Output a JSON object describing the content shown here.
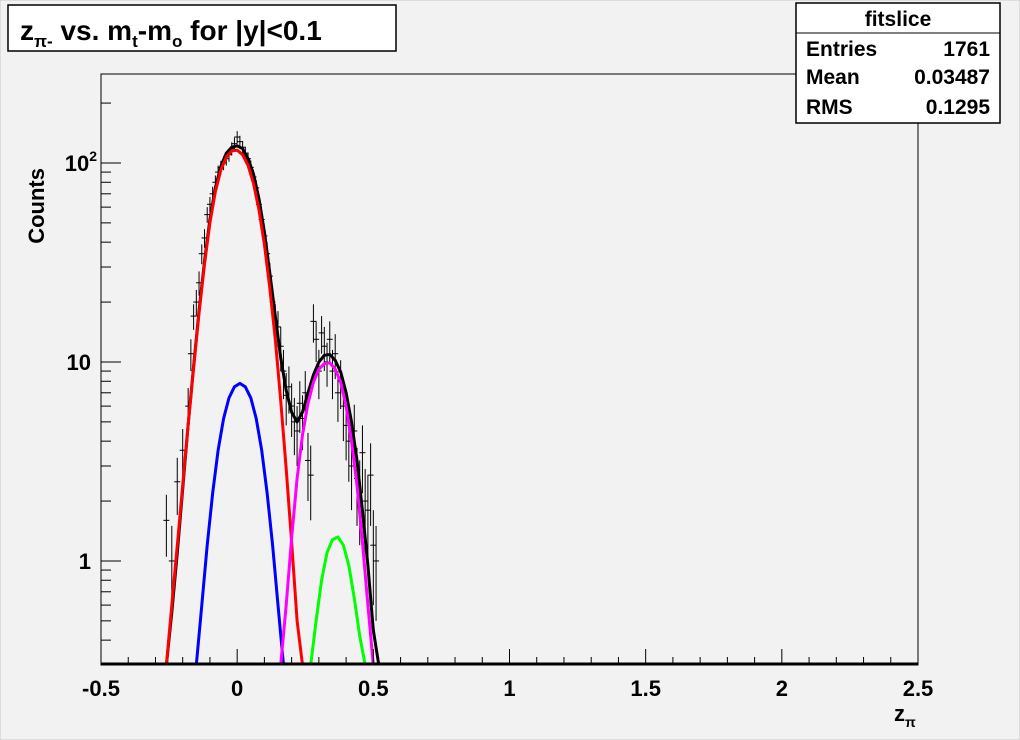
{
  "chart_data": {
    "type": "line",
    "title": {
      "main": "z",
      "main_sub": "π-",
      "mid": " vs. m",
      "mid_sub": "t",
      "dash": "-m",
      "dash_sub": "o",
      "tail": " for |y|<0.1"
    },
    "xlabel": {
      "main": "z",
      "sub": "π"
    },
    "ylabel": "Counts",
    "xlim": [
      -0.5,
      2.5
    ],
    "ylim": [
      0.3,
      280
    ],
    "yscale": "log",
    "x_ticks": [
      {
        "value": -0.5,
        "label": "-0.5"
      },
      {
        "value": 0,
        "label": "0"
      },
      {
        "value": 0.5,
        "label": "0.5"
      },
      {
        "value": 1,
        "label": "1"
      },
      {
        "value": 1.5,
        "label": "1.5"
      },
      {
        "value": 2,
        "label": "2"
      },
      {
        "value": 2.5,
        "label": "2.5"
      }
    ],
    "y_ticks": [
      {
        "value": 1,
        "label": "1"
      },
      {
        "value": 10,
        "label": "10"
      },
      {
        "value": 100,
        "label": "10",
        "sup": "2"
      }
    ],
    "stats_box": {
      "title": "fitslice",
      "rows": [
        {
          "label": "Entries",
          "value": "1761"
        },
        {
          "label": "Mean",
          "value": "0.03487"
        },
        {
          "label": "RMS",
          "value": "0.1295"
        }
      ]
    },
    "series": [
      {
        "color": "#000000",
        "kind": "errorbars",
        "points": [
          [
            -0.26,
            1.6,
            0.55
          ],
          [
            -0.24,
            1.0,
            0.5
          ],
          [
            -0.22,
            2.5,
            0.8
          ],
          [
            -0.2,
            3.6,
            1.0
          ],
          [
            -0.18,
            6.0,
            1.4
          ],
          [
            -0.17,
            11.0,
            2.0
          ],
          [
            -0.16,
            17.0,
            2.5
          ],
          [
            -0.15,
            20.0,
            3.0
          ],
          [
            -0.14,
            25.0,
            3.5
          ],
          [
            -0.13,
            35.0,
            4.0
          ],
          [
            -0.12,
            42.0,
            4.5
          ],
          [
            -0.11,
            55.0,
            5.0
          ],
          [
            -0.1,
            62.0,
            5.5
          ],
          [
            -0.09,
            70.0,
            6.0
          ],
          [
            -0.08,
            80.0,
            6.5
          ],
          [
            -0.07,
            90.0,
            7.0
          ],
          [
            -0.06,
            95.0,
            7.5
          ],
          [
            -0.05,
            100.0,
            8.0
          ],
          [
            -0.04,
            105.0,
            8.0
          ],
          [
            -0.03,
            110.0,
            8.5
          ],
          [
            -0.02,
            118.0,
            9.0
          ],
          [
            -0.01,
            125.0,
            9.0
          ],
          [
            0.0,
            135.0,
            9.5
          ],
          [
            0.01,
            128.0,
            9.0
          ],
          [
            0.02,
            120.0,
            9.0
          ],
          [
            0.03,
            112.0,
            8.5
          ],
          [
            0.04,
            105.0,
            8.0
          ],
          [
            0.05,
            95.0,
            8.0
          ],
          [
            0.06,
            85.0,
            7.5
          ],
          [
            0.07,
            75.0,
            7.0
          ],
          [
            0.08,
            62.0,
            6.5
          ],
          [
            0.09,
            52.0,
            6.0
          ],
          [
            0.1,
            43.0,
            5.5
          ],
          [
            0.11,
            35.0,
            5.0
          ],
          [
            0.12,
            27.0,
            4.5
          ],
          [
            0.13,
            20.0,
            4.0
          ],
          [
            0.14,
            16.0,
            3.5
          ],
          [
            0.15,
            15.0,
            3.0
          ],
          [
            0.16,
            12.0,
            3.0
          ],
          [
            0.17,
            9.0,
            2.5
          ],
          [
            0.18,
            6.8,
            2.0
          ],
          [
            0.19,
            7.5,
            2.0
          ],
          [
            0.2,
            6.0,
            1.8
          ],
          [
            0.21,
            5.0,
            1.6
          ],
          [
            0.22,
            4.5,
            1.5
          ],
          [
            0.23,
            6.2,
            1.8
          ],
          [
            0.24,
            5.2,
            1.6
          ],
          [
            0.25,
            7.0,
            2.0
          ],
          [
            0.26,
            3.2,
            1.2
          ],
          [
            0.27,
            2.7,
            1.1
          ],
          [
            0.28,
            16.0,
            3.5
          ],
          [
            0.29,
            13.0,
            3.0
          ],
          [
            0.3,
            9.0,
            2.5
          ],
          [
            0.31,
            14.0,
            3.0
          ],
          [
            0.32,
            12.0,
            3.0
          ],
          [
            0.33,
            10.0,
            2.5
          ],
          [
            0.34,
            13.0,
            3.0
          ],
          [
            0.35,
            9.0,
            2.5
          ],
          [
            0.36,
            11.0,
            2.8
          ],
          [
            0.37,
            7.0,
            2.0
          ],
          [
            0.38,
            8.0,
            2.2
          ],
          [
            0.39,
            6.0,
            2.0
          ],
          [
            0.4,
            4.8,
            1.6
          ],
          [
            0.41,
            4.0,
            1.5
          ],
          [
            0.42,
            3.0,
            1.2
          ],
          [
            0.43,
            4.5,
            1.6
          ],
          [
            0.44,
            2.6,
            1.1
          ],
          [
            0.45,
            2.2,
            1.0
          ],
          [
            0.46,
            3.5,
            1.3
          ],
          [
            0.47,
            2.0,
            0.9
          ],
          [
            0.48,
            1.8,
            0.9
          ],
          [
            0.49,
            2.7,
            1.2
          ],
          [
            0.5,
            1.2,
            0.6
          ],
          [
            0.51,
            1.0,
            0.5
          ]
        ]
      },
      {
        "color": "#000000",
        "kind": "curve",
        "points": [
          [
            -0.26,
            0.3
          ],
          [
            -0.24,
            0.55
          ],
          [
            -0.22,
            1.1
          ],
          [
            -0.2,
            2.3
          ],
          [
            -0.18,
            4.8
          ],
          [
            -0.16,
            9.5
          ],
          [
            -0.14,
            18.0
          ],
          [
            -0.12,
            32.0
          ],
          [
            -0.1,
            52.0
          ],
          [
            -0.08,
            75.0
          ],
          [
            -0.06,
            96.0
          ],
          [
            -0.04,
            112.0
          ],
          [
            -0.02,
            120.0
          ],
          [
            0.0,
            122.0
          ],
          [
            0.02,
            118.0
          ],
          [
            0.04,
            105.0
          ],
          [
            0.06,
            88.0
          ],
          [
            0.08,
            66.0
          ],
          [
            0.1,
            45.0
          ],
          [
            0.12,
            28.0
          ],
          [
            0.14,
            17.0
          ],
          [
            0.16,
            10.5
          ],
          [
            0.18,
            7.2
          ],
          [
            0.2,
            5.6
          ],
          [
            0.22,
            5.0
          ],
          [
            0.24,
            5.6
          ],
          [
            0.26,
            7.0
          ],
          [
            0.28,
            8.6
          ],
          [
            0.3,
            10.0
          ],
          [
            0.32,
            10.8
          ],
          [
            0.34,
            10.9
          ],
          [
            0.36,
            10.2
          ],
          [
            0.38,
            8.9
          ],
          [
            0.4,
            7.0
          ],
          [
            0.42,
            5.0
          ],
          [
            0.44,
            3.2
          ],
          [
            0.46,
            1.8
          ],
          [
            0.48,
            0.95
          ],
          [
            0.5,
            0.45
          ],
          [
            0.52,
            0.3
          ]
        ]
      },
      {
        "color": "#ff0000",
        "kind": "curve",
        "points": [
          [
            -0.26,
            0.3
          ],
          [
            -0.24,
            0.6
          ],
          [
            -0.22,
            1.2
          ],
          [
            -0.2,
            2.4
          ],
          [
            -0.18,
            4.8
          ],
          [
            -0.16,
            9.3
          ],
          [
            -0.14,
            17.5
          ],
          [
            -0.12,
            31.0
          ],
          [
            -0.1,
            50.0
          ],
          [
            -0.08,
            72.0
          ],
          [
            -0.06,
            92.0
          ],
          [
            -0.04,
            107.0
          ],
          [
            -0.02,
            115.0
          ],
          [
            0.0,
            116.0
          ],
          [
            0.02,
            110.0
          ],
          [
            0.04,
            97.0
          ],
          [
            0.06,
            79.0
          ],
          [
            0.08,
            58.0
          ],
          [
            0.1,
            39.0
          ],
          [
            0.12,
            23.5
          ],
          [
            0.14,
            13.0
          ],
          [
            0.16,
            6.4
          ],
          [
            0.18,
            2.9
          ],
          [
            0.2,
            1.25
          ],
          [
            0.22,
            0.5
          ],
          [
            0.24,
            0.3
          ]
        ]
      },
      {
        "color": "#0000ff",
        "kind": "curve",
        "points": [
          [
            -0.15,
            0.3
          ],
          [
            -0.13,
            0.6
          ],
          [
            -0.11,
            1.2
          ],
          [
            -0.09,
            2.2
          ],
          [
            -0.07,
            3.6
          ],
          [
            -0.05,
            5.2
          ],
          [
            -0.03,
            6.6
          ],
          [
            -0.01,
            7.5
          ],
          [
            0.01,
            7.8
          ],
          [
            0.03,
            7.5
          ],
          [
            0.05,
            6.6
          ],
          [
            0.07,
            5.2
          ],
          [
            0.09,
            3.6
          ],
          [
            0.11,
            2.2
          ],
          [
            0.13,
            1.2
          ],
          [
            0.15,
            0.6
          ],
          [
            0.17,
            0.3
          ]
        ]
      },
      {
        "color": "#ff00ff",
        "kind": "curve",
        "points": [
          [
            0.16,
            0.3
          ],
          [
            0.18,
            0.6
          ],
          [
            0.2,
            1.3
          ],
          [
            0.22,
            2.6
          ],
          [
            0.24,
            4.3
          ],
          [
            0.26,
            6.2
          ],
          [
            0.28,
            7.9
          ],
          [
            0.3,
            9.2
          ],
          [
            0.32,
            9.8
          ],
          [
            0.34,
            9.9
          ],
          [
            0.36,
            9.2
          ],
          [
            0.38,
            7.9
          ],
          [
            0.4,
            6.0
          ],
          [
            0.42,
            4.0
          ],
          [
            0.44,
            2.4
          ],
          [
            0.46,
            1.25
          ],
          [
            0.48,
            0.6
          ],
          [
            0.5,
            0.3
          ]
        ]
      },
      {
        "color": "#00ff00",
        "kind": "curve",
        "points": [
          [
            0.27,
            0.3
          ],
          [
            0.29,
            0.5
          ],
          [
            0.31,
            0.8
          ],
          [
            0.33,
            1.1
          ],
          [
            0.35,
            1.28
          ],
          [
            0.37,
            1.32
          ],
          [
            0.39,
            1.2
          ],
          [
            0.41,
            0.95
          ],
          [
            0.43,
            0.65
          ],
          [
            0.45,
            0.42
          ],
          [
            0.47,
            0.3
          ]
        ]
      }
    ],
    "grid": false,
    "legend": "none"
  }
}
